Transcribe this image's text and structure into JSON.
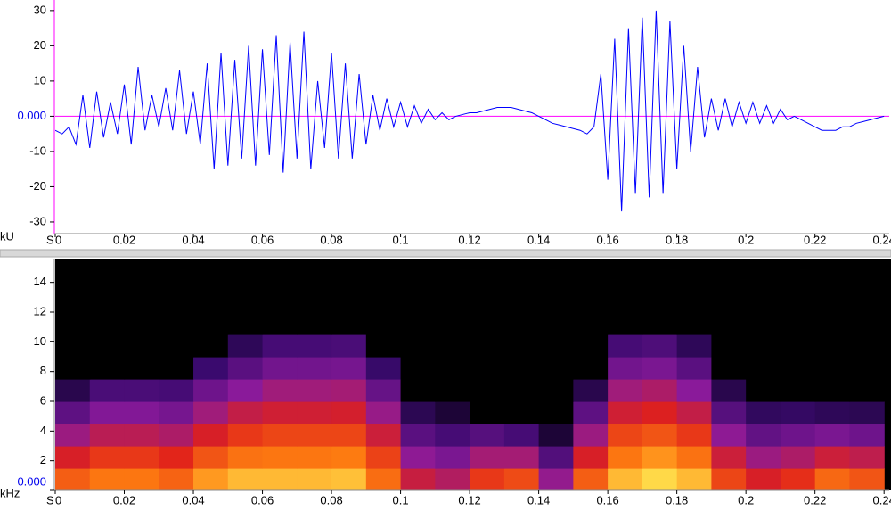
{
  "chart_data": [
    {
      "type": "line",
      "x_unit": "S",
      "y_unit": "kU",
      "zero_line_color": "#ff00ff",
      "x": [
        0,
        0.002,
        0.004,
        0.006,
        0.008,
        0.01,
        0.012,
        0.014,
        0.016,
        0.018,
        0.02,
        0.022,
        0.024,
        0.026,
        0.028,
        0.03,
        0.032,
        0.034,
        0.036,
        0.038,
        0.04,
        0.042,
        0.044,
        0.046,
        0.048,
        0.05,
        0.052,
        0.054,
        0.056,
        0.058,
        0.06,
        0.062,
        0.064,
        0.066,
        0.068,
        0.07,
        0.072,
        0.074,
        0.076,
        0.078,
        0.08,
        0.082,
        0.084,
        0.086,
        0.088,
        0.09,
        0.092,
        0.094,
        0.096,
        0.098,
        0.1,
        0.102,
        0.104,
        0.106,
        0.108,
        0.11,
        0.112,
        0.114,
        0.116,
        0.118,
        0.12,
        0.122,
        0.124,
        0.126,
        0.128,
        0.13,
        0.132,
        0.134,
        0.136,
        0.138,
        0.14,
        0.142,
        0.144,
        0.146,
        0.148,
        0.15,
        0.152,
        0.154,
        0.156,
        0.158,
        0.16,
        0.162,
        0.164,
        0.166,
        0.168,
        0.17,
        0.172,
        0.174,
        0.176,
        0.178,
        0.18,
        0.182,
        0.184,
        0.186,
        0.188,
        0.19,
        0.192,
        0.194,
        0.196,
        0.198,
        0.2,
        0.202,
        0.204,
        0.206,
        0.208,
        0.21,
        0.212,
        0.214,
        0.216,
        0.218,
        0.22,
        0.222,
        0.224,
        0.226,
        0.228,
        0.23,
        0.232,
        0.234,
        0.236,
        0.238,
        0.24
      ],
      "series": [
        {
          "color": "#0000ff",
          "values": [
            -4,
            -5,
            -3,
            -8,
            6,
            -9,
            7,
            -6,
            4,
            -5,
            9,
            -8,
            14,
            -4,
            6,
            -3,
            8,
            -4,
            13,
            -5,
            7,
            -8,
            15,
            -15,
            18,
            -14,
            16,
            -12,
            20,
            -14,
            19,
            -11,
            23,
            -16,
            21,
            -12,
            24,
            -15,
            10,
            -9,
            18,
            -12,
            15,
            -12,
            12,
            -8,
            6,
            -4,
            5,
            -3,
            4,
            -3,
            3,
            -2,
            2,
            -1,
            1,
            -1,
            0,
            0.5,
            1,
            1,
            1.5,
            2,
            2.5,
            2.5,
            2.5,
            2,
            1.5,
            1,
            0,
            -1,
            -2,
            -2.5,
            -3,
            -3.5,
            -4,
            -5,
            -3,
            12,
            -18,
            22,
            -27,
            25,
            -22,
            28,
            -23,
            30,
            -22,
            27,
            -15,
            20,
            -10,
            14,
            -6,
            5,
            -4,
            5,
            -3,
            4,
            -2,
            4,
            -2,
            3,
            -2,
            2,
            -1,
            0,
            -1,
            -2,
            -3,
            -4,
            -4,
            -4,
            -3,
            -3,
            -2,
            -1.5,
            -1,
            -0.5,
            0
          ]
        }
      ],
      "xlim": [
        0,
        0.2415
      ],
      "xticks": [
        0,
        0.02,
        0.04,
        0.06,
        0.08,
        0.1,
        0.12,
        0.14,
        0.16,
        0.18,
        0.2,
        0.22,
        0.24
      ],
      "ylim": [
        -33.3,
        33
      ],
      "yticks": [
        30,
        20,
        10,
        {
          "value": 0,
          "label": "0.000"
        },
        -10,
        -20,
        -30
      ]
    },
    {
      "type": "heatmap",
      "x_unit": "S",
      "y_unit": "kHz",
      "colormap": [
        "#000000",
        "#3a0a6e",
        "#8a1a9a",
        "#e0201a",
        "#ff8010",
        "#ffff60"
      ],
      "x_bins": [
        0,
        0.01,
        0.02,
        0.03,
        0.04,
        0.05,
        0.06,
        0.07,
        0.08,
        0.09,
        0.1,
        0.11,
        0.12,
        0.13,
        0.14,
        0.15,
        0.16,
        0.17,
        0.18,
        0.19,
        0.2,
        0.21,
        0.22,
        0.23,
        0.24
      ],
      "y_bins": [
        0,
        1.5,
        3,
        4.5,
        6,
        7.5,
        9,
        10.5,
        12
      ],
      "z": [
        [
          0.73,
          0.78,
          0.78,
          0.74,
          0.84,
          0.89,
          0.89,
          0.89,
          0.9,
          0.76,
          0.54,
          0.49,
          0.65,
          0.69,
          0.42,
          0.73,
          0.89,
          0.94,
          0.89,
          0.68,
          0.58,
          0.63,
          0.75,
          0.71
        ],
        [
          0.58,
          0.65,
          0.65,
          0.61,
          0.71,
          0.77,
          0.78,
          0.78,
          0.79,
          0.67,
          0.41,
          0.36,
          0.46,
          0.46,
          0.26,
          0.58,
          0.78,
          0.83,
          0.77,
          0.55,
          0.44,
          0.48,
          0.55,
          0.52
        ],
        [
          0.44,
          0.51,
          0.51,
          0.48,
          0.58,
          0.65,
          0.68,
          0.68,
          0.68,
          0.55,
          0.28,
          0.23,
          0.27,
          0.23,
          0.1,
          0.44,
          0.68,
          0.71,
          0.65,
          0.41,
          0.3,
          0.33,
          0.36,
          0.33
        ],
        [
          0.29,
          0.38,
          0.38,
          0.35,
          0.45,
          0.53,
          0.56,
          0.56,
          0.57,
          0.43,
          0.15,
          0.1,
          0,
          0,
          0,
          0.29,
          0.56,
          0.59,
          0.53,
          0.27,
          0.17,
          0.18,
          0.16,
          0.15
        ],
        [
          0.14,
          0.24,
          0.24,
          0.23,
          0.33,
          0.4,
          0.45,
          0.45,
          0.46,
          0.31,
          0,
          0,
          0,
          0,
          0,
          0.14,
          0.45,
          0.48,
          0.4,
          0.14,
          0,
          0,
          0,
          0
        ],
        [
          0,
          0,
          0,
          0,
          0.2,
          0.28,
          0.34,
          0.34,
          0.35,
          0.19,
          0,
          0,
          0,
          0,
          0,
          0,
          0.34,
          0.36,
          0.28,
          0,
          0,
          0,
          0,
          0
        ],
        [
          0,
          0,
          0,
          0,
          0,
          0.16,
          0.23,
          0.23,
          0.24,
          0,
          0,
          0,
          0,
          0,
          0,
          0,
          0.23,
          0.25,
          0.16,
          0,
          0,
          0,
          0,
          0
        ],
        [
          0,
          0,
          0,
          0,
          0,
          0,
          0,
          0,
          0,
          0,
          0,
          0,
          0,
          0,
          0,
          0,
          0,
          0,
          0,
          0,
          0,
          0,
          0,
          0
        ]
      ],
      "xlim": [
        0,
        0.2415
      ],
      "xticks": [
        0,
        0.02,
        0.04,
        0.06,
        0.08,
        0.1,
        0.12,
        0.14,
        0.16,
        0.18,
        0.2,
        0.22,
        0.24
      ],
      "ylim": [
        0,
        15.6
      ],
      "yticks": [
        {
          "value": 0,
          "label": "0.000"
        },
        2,
        4,
        6,
        8,
        10,
        12,
        14
      ]
    }
  ]
}
